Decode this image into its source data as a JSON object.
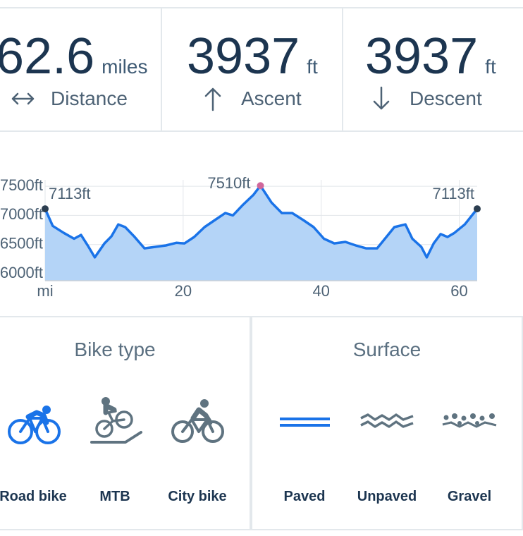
{
  "stats": [
    {
      "value": 62.6,
      "unit": "miles",
      "label": "Distance"
    },
    {
      "value": 3937,
      "unit": "ft",
      "label": "Ascent"
    },
    {
      "value": 3937,
      "unit": "ft",
      "label": "Descent"
    }
  ],
  "chart_data": {
    "type": "area",
    "x": [
      0,
      1.1,
      2.7,
      4.2,
      5.2,
      6.2,
      7.2,
      8.6,
      9.6,
      10.6,
      11.6,
      12.9,
      14.4,
      15.9,
      17.5,
      19.0,
      20.2,
      21.6,
      23.1,
      24.6,
      26.1,
      27.2,
      28.7,
      30.2,
      31.2,
      32.8,
      34.3,
      35.8,
      37.4,
      38.9,
      40.4,
      41.9,
      43.5,
      45.0,
      46.5,
      48.1,
      49.1,
      50.6,
      52.2,
      53.2,
      54.5,
      55.3,
      56.3,
      57.3,
      58.3,
      59.3,
      60.8,
      62.6
    ],
    "series": [
      {
        "color": "#1a73e8",
        "fill": "#b4d4f7",
        "values": [
          7113,
          6820,
          6700,
          6600,
          6665,
          6480,
          6280,
          6520,
          6640,
          6845,
          6800,
          6640,
          6435,
          6460,
          6485,
          6530,
          6520,
          6630,
          6800,
          6920,
          7040,
          7000,
          7185,
          7355,
          7510,
          7220,
          7040,
          7040,
          6920,
          6800,
          6600,
          6520,
          6545,
          6485,
          6435,
          6435,
          6580,
          6800,
          6845,
          6600,
          6460,
          6280,
          6520,
          6680,
          6630,
          6700,
          6845,
          7113
        ]
      }
    ],
    "xlim": [
      0,
      62.6
    ],
    "ylim": [
      5880,
      7610
    ],
    "xticks": [
      {
        "value": 0,
        "label": "mi"
      },
      20,
      40,
      60
    ],
    "yticks": [
      {
        "value": 7500,
        "label": "7500ft"
      },
      {
        "value": 7000,
        "label": "7000ft"
      },
      {
        "value": 6500,
        "label": "6500ft"
      },
      {
        "value": 6000,
        "label": "6000ft"
      }
    ],
    "grid": true,
    "annotations": [
      {
        "label": "7113ft",
        "x": 0,
        "y": 7113,
        "color": "#2c3e50"
      },
      {
        "label": "7510ft",
        "x": 31.2,
        "y": 7510,
        "color": "#d0679b"
      },
      {
        "label": "7113ft",
        "x": 62.6,
        "y": 7113,
        "color": "#2c3e50"
      }
    ]
  },
  "bike_type": {
    "title": "Bike type",
    "options": [
      "Road bike",
      "MTB",
      "City bike"
    ],
    "selected": 0
  },
  "surface": {
    "title": "Surface",
    "options": [
      "Paved",
      "Unpaved",
      "Gravel"
    ],
    "selected": 0
  }
}
